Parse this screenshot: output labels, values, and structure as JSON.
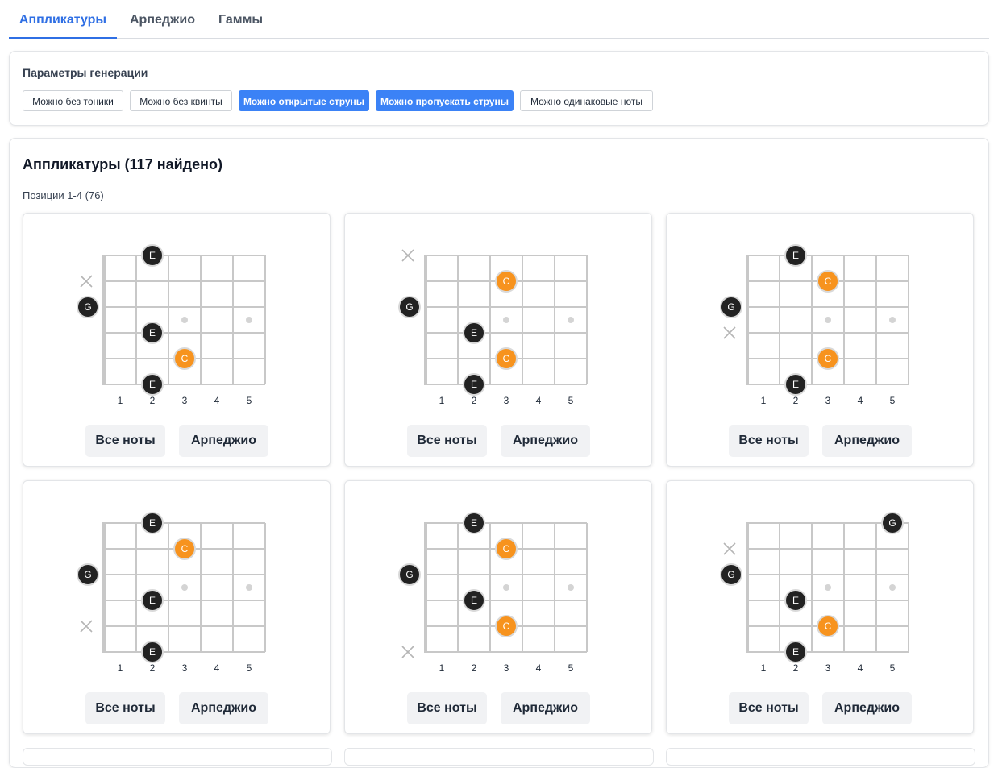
{
  "tabs": [
    {
      "label": "Аппликатуры",
      "active": true
    },
    {
      "label": "Арпеджио",
      "active": false
    },
    {
      "label": "Гаммы",
      "active": false
    }
  ],
  "params": {
    "title": "Параметры генерации",
    "chips": [
      {
        "label": "Можно без тоники",
        "on": false
      },
      {
        "label": "Можно без квинты",
        "on": false
      },
      {
        "label": "Можно открытые струны",
        "on": true
      },
      {
        "label": "Можно пропускать струны",
        "on": true
      },
      {
        "label": "Можно одинаковые ноты",
        "on": false
      }
    ]
  },
  "results": {
    "title": "Аппликатуры (117 найдено)",
    "group_label": "Позиции 1-4 (76)"
  },
  "fret_numbers": [
    "1",
    "2",
    "3",
    "4",
    "5"
  ],
  "card_buttons": {
    "all_notes": "Все ноты",
    "arpeggio": "Арпеджио"
  },
  "colors": {
    "accent": "#2f6fe4",
    "chip_on": "#3b82f6",
    "note_dark": "#222222",
    "note_root": "#f7931e"
  },
  "fingerings": [
    {
      "notes": [
        {
          "string": 1,
          "fret": 2,
          "label": "E"
        },
        {
          "string": 4,
          "fret": 2,
          "label": "E"
        },
        {
          "string": 5,
          "fret": 3,
          "label": "C",
          "root": true
        },
        {
          "string": 6,
          "fret": 2,
          "label": "E"
        }
      ],
      "open": [
        {
          "string": 3,
          "label": "G"
        }
      ],
      "muted": [
        2
      ]
    },
    {
      "notes": [
        {
          "string": 2,
          "fret": 3,
          "label": "C",
          "root": true
        },
        {
          "string": 4,
          "fret": 2,
          "label": "E"
        },
        {
          "string": 5,
          "fret": 3,
          "label": "C",
          "root": true
        },
        {
          "string": 6,
          "fret": 2,
          "label": "E"
        }
      ],
      "open": [
        {
          "string": 3,
          "label": "G"
        }
      ],
      "muted": [
        1
      ]
    },
    {
      "notes": [
        {
          "string": 1,
          "fret": 2,
          "label": "E"
        },
        {
          "string": 2,
          "fret": 3,
          "label": "C",
          "root": true
        },
        {
          "string": 5,
          "fret": 3,
          "label": "C",
          "root": true
        },
        {
          "string": 6,
          "fret": 2,
          "label": "E"
        }
      ],
      "open": [
        {
          "string": 3,
          "label": "G"
        }
      ],
      "muted": [
        4
      ]
    },
    {
      "notes": [
        {
          "string": 1,
          "fret": 2,
          "label": "E"
        },
        {
          "string": 2,
          "fret": 3,
          "label": "C",
          "root": true
        },
        {
          "string": 4,
          "fret": 2,
          "label": "E"
        },
        {
          "string": 6,
          "fret": 2,
          "label": "E"
        }
      ],
      "open": [
        {
          "string": 3,
          "label": "G"
        }
      ],
      "muted": [
        5
      ]
    },
    {
      "notes": [
        {
          "string": 1,
          "fret": 2,
          "label": "E"
        },
        {
          "string": 2,
          "fret": 3,
          "label": "C",
          "root": true
        },
        {
          "string": 4,
          "fret": 2,
          "label": "E"
        },
        {
          "string": 5,
          "fret": 3,
          "label": "C",
          "root": true
        }
      ],
      "open": [
        {
          "string": 3,
          "label": "G"
        }
      ],
      "muted": [
        6
      ]
    },
    {
      "notes": [
        {
          "string": 1,
          "fret": 5,
          "label": "G"
        },
        {
          "string": 4,
          "fret": 2,
          "label": "E"
        },
        {
          "string": 5,
          "fret": 3,
          "label": "C",
          "root": true
        },
        {
          "string": 6,
          "fret": 2,
          "label": "E"
        }
      ],
      "open": [
        {
          "string": 3,
          "label": "G"
        }
      ],
      "muted": [
        2
      ]
    }
  ]
}
